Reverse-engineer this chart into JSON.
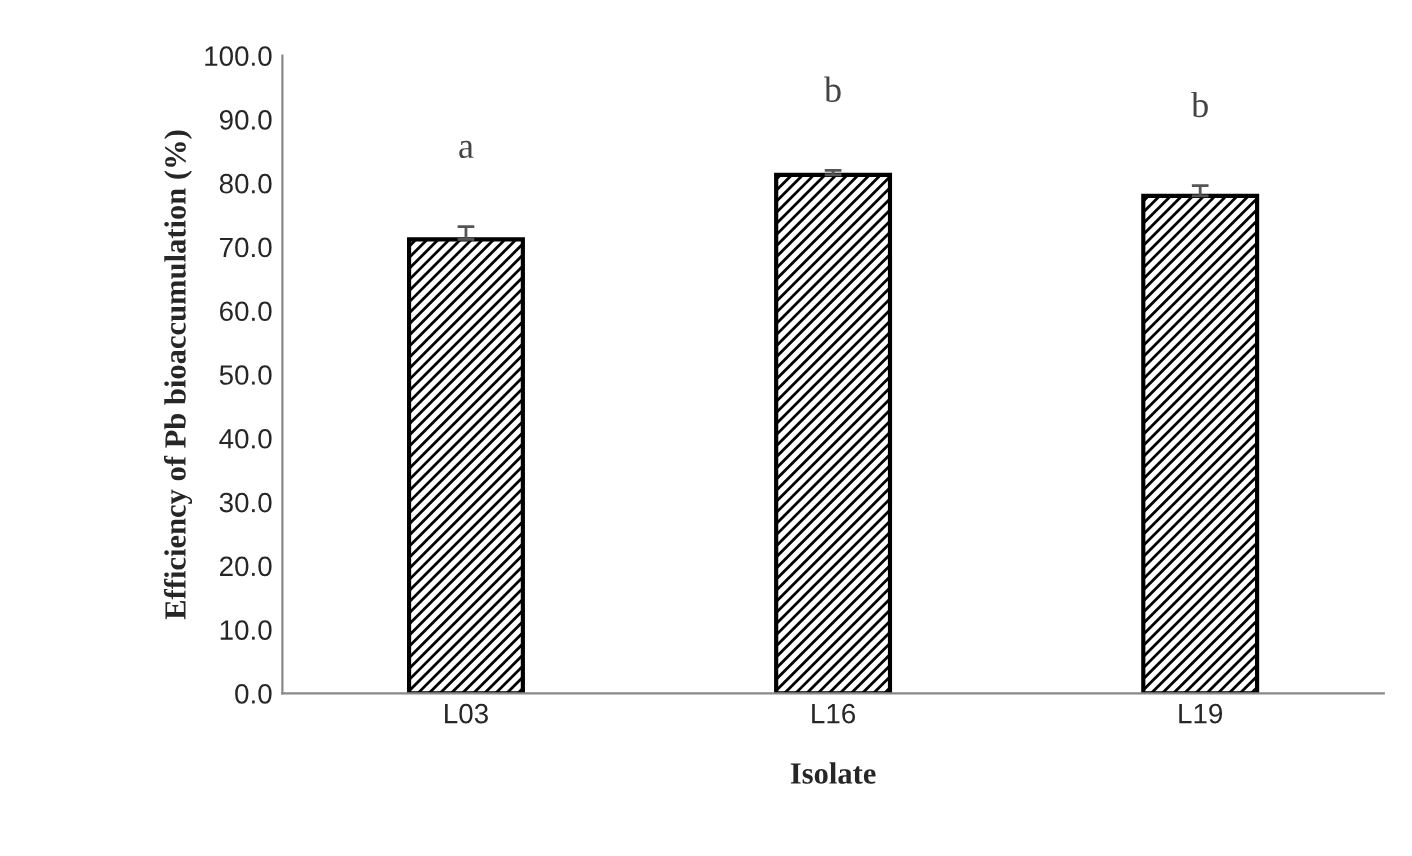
{
  "chart_data": {
    "type": "bar",
    "xlabel": "Isolate",
    "ylabel": "Efficiency of Pb bioaccumulation (%)",
    "categories": [
      "L03",
      "L16",
      "L19"
    ],
    "values": [
      71.2,
      81.3,
      78.0
    ],
    "errors": [
      2.0,
      0.7,
      1.6
    ],
    "ylim": [
      0,
      100
    ],
    "yticks": [
      {
        "value": 0,
        "label": "0.0"
      },
      {
        "value": 10,
        "label": "10.0"
      },
      {
        "value": 20,
        "label": "20.0"
      },
      {
        "value": 30,
        "label": "30.0"
      },
      {
        "value": 40,
        "label": "40.0"
      },
      {
        "value": 50,
        "label": "50.0"
      },
      {
        "value": 60,
        "label": "60.0"
      },
      {
        "value": 70,
        "label": "70.0"
      },
      {
        "value": 80,
        "label": "80.0"
      },
      {
        "value": 90,
        "label": "90.0"
      },
      {
        "value": 100,
        "label": "100.0"
      }
    ],
    "annotations": [
      "a",
      "b",
      "b"
    ],
    "grid": false
  }
}
